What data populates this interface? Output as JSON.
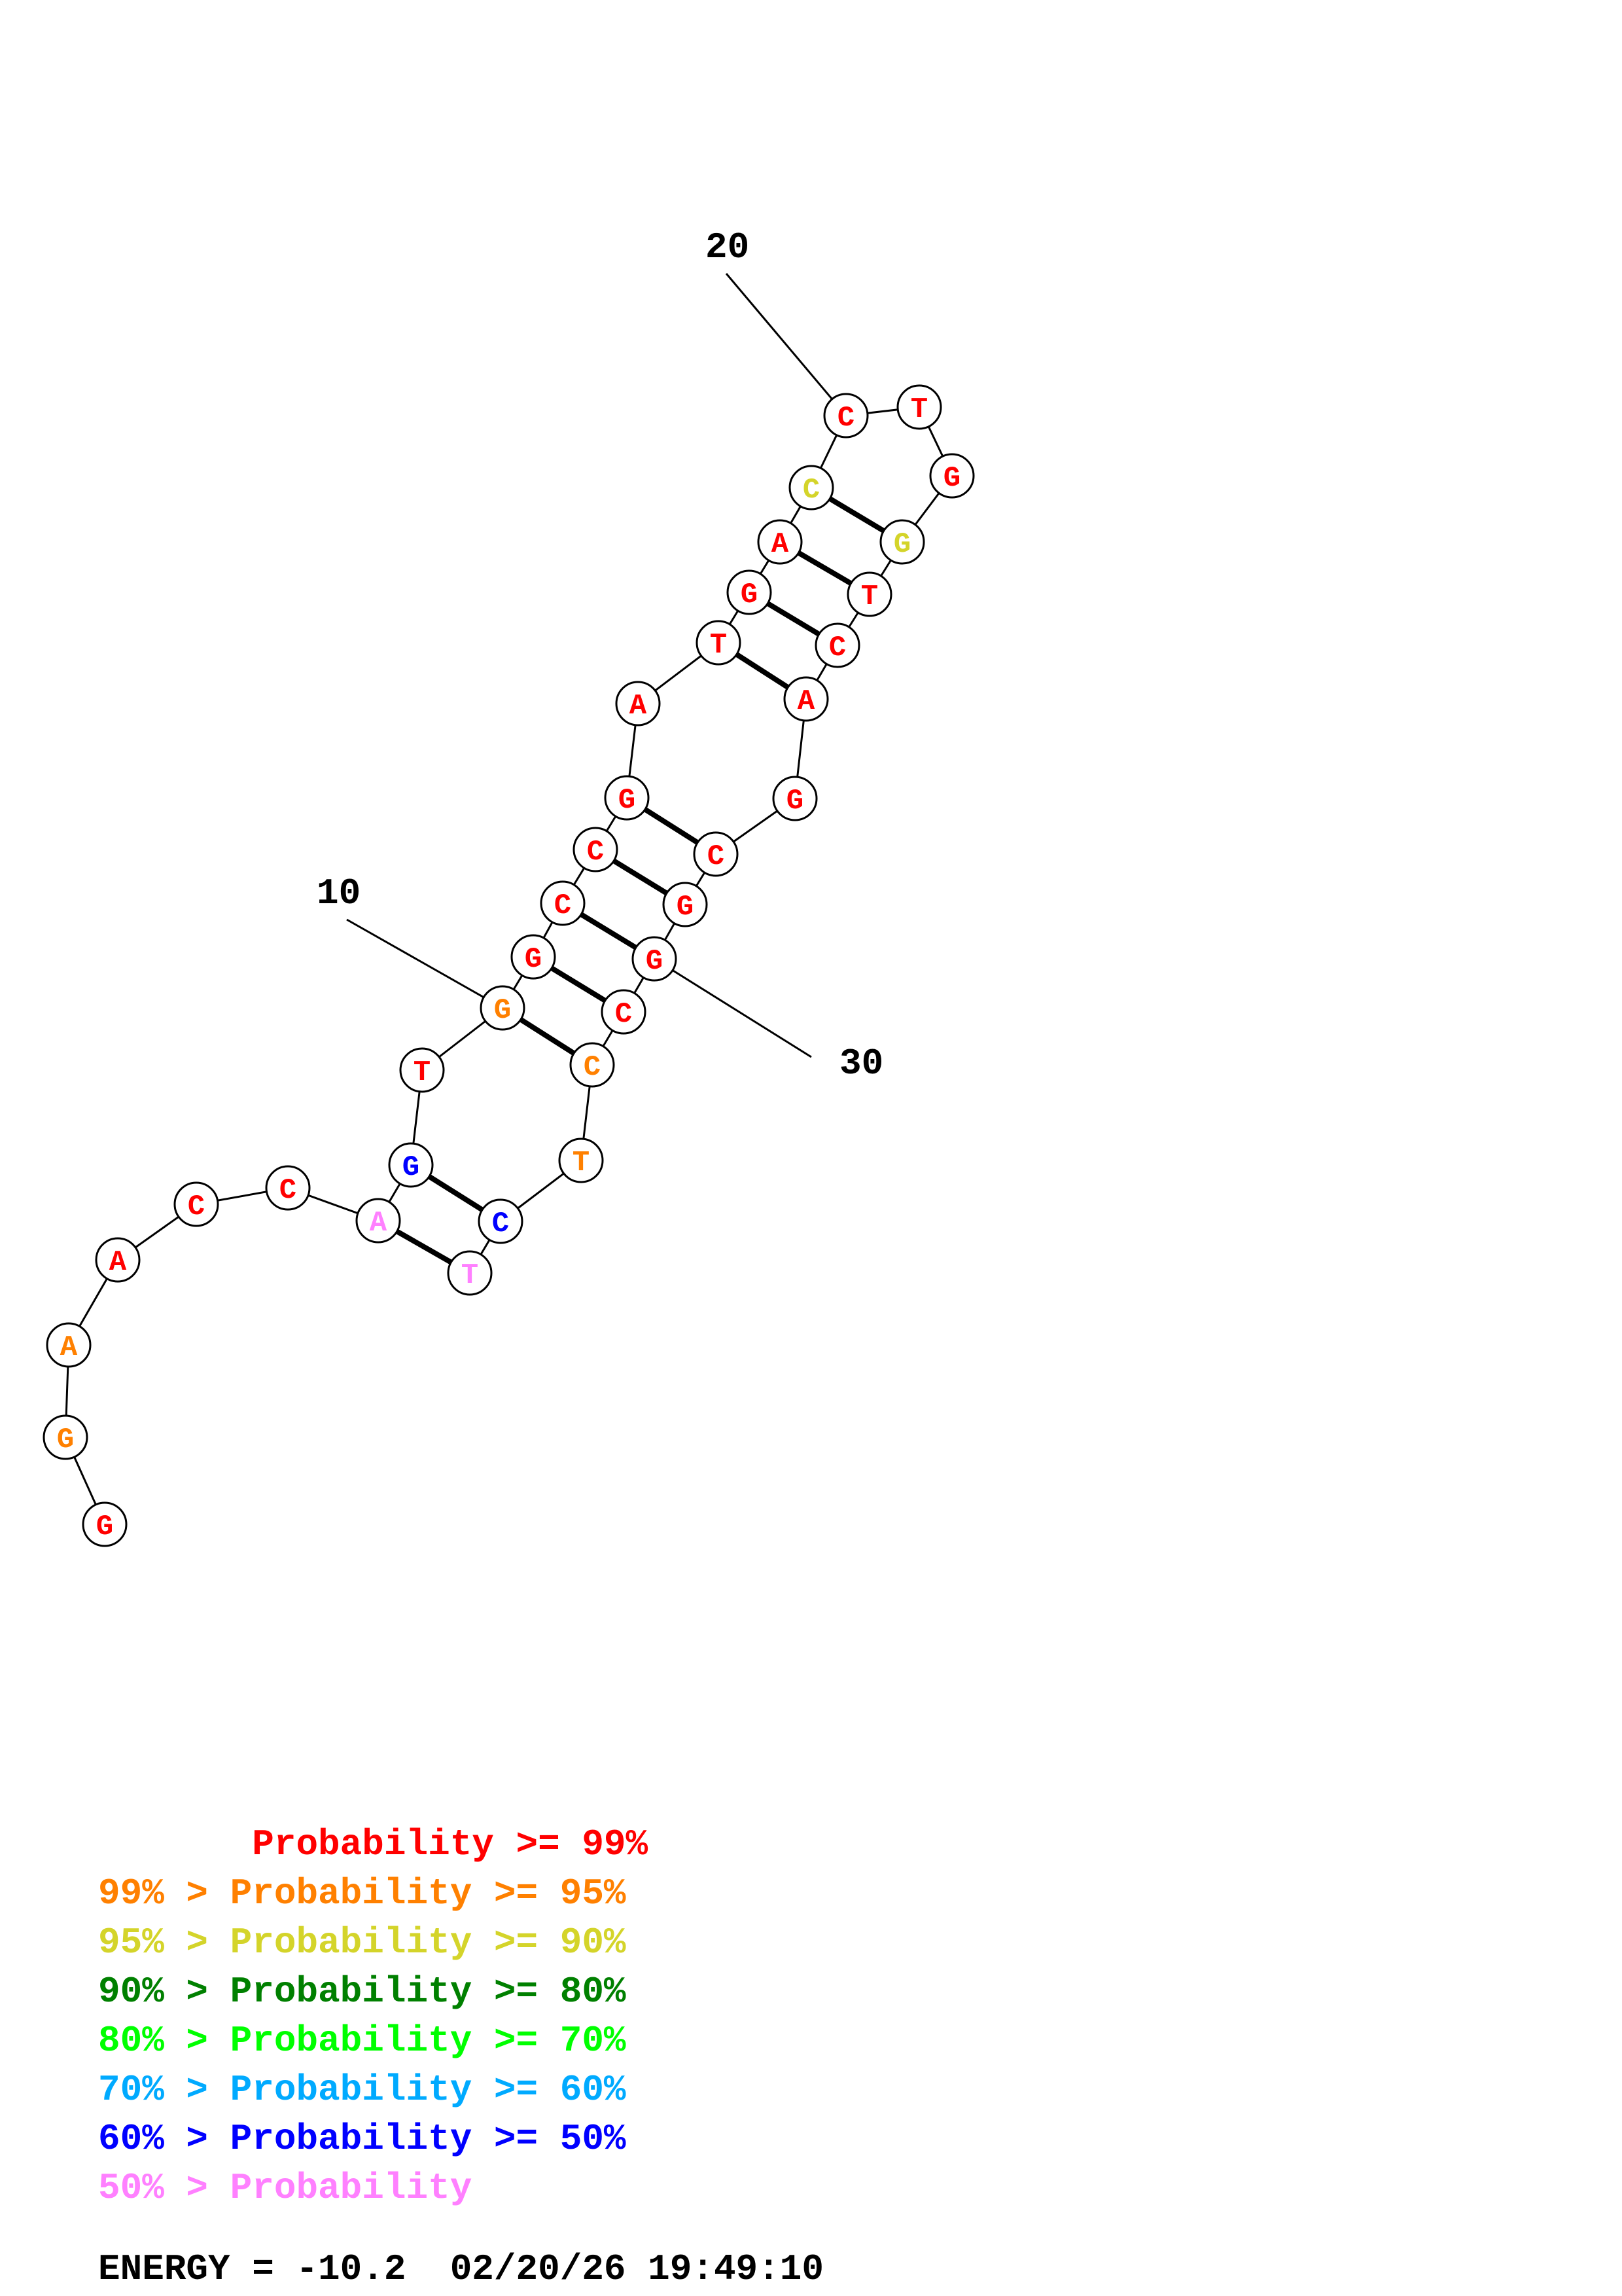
{
  "colors": {
    "p99": "#ff0000",
    "p95": "#ff8000",
    "p90": "#d4d42a",
    "p80": "#008000",
    "p70": "#00ff00",
    "p60": "#00aaff",
    "p50": "#0000ff",
    "plow": "#ff80ff"
  },
  "nucleotides": [
    {
      "n": 1,
      "base": "G",
      "cls": "p99"
    },
    {
      "n": 2,
      "base": "G",
      "cls": "p95"
    },
    {
      "n": 3,
      "base": "A",
      "cls": "p95"
    },
    {
      "n": 4,
      "base": "A",
      "cls": "p99"
    },
    {
      "n": 5,
      "base": "C",
      "cls": "p99"
    },
    {
      "n": 6,
      "base": "C",
      "cls": "p99"
    },
    {
      "n": 7,
      "base": "A",
      "cls": "plow"
    },
    {
      "n": 8,
      "base": "G",
      "cls": "p50"
    },
    {
      "n": 9,
      "base": "T",
      "cls": "p99"
    },
    {
      "n": 10,
      "base": "G",
      "cls": "p95"
    },
    {
      "n": 11,
      "base": "G",
      "cls": "p99"
    },
    {
      "n": 12,
      "base": "C",
      "cls": "p99"
    },
    {
      "n": 13,
      "base": "C",
      "cls": "p99"
    },
    {
      "n": 14,
      "base": "G",
      "cls": "p99"
    },
    {
      "n": 15,
      "base": "A",
      "cls": "p99"
    },
    {
      "n": 16,
      "base": "T",
      "cls": "p99"
    },
    {
      "n": 17,
      "base": "G",
      "cls": "p99"
    },
    {
      "n": 18,
      "base": "A",
      "cls": "p99"
    },
    {
      "n": 19,
      "base": "C",
      "cls": "p90"
    },
    {
      "n": 20,
      "base": "C",
      "cls": "p99"
    },
    {
      "n": 21,
      "base": "T",
      "cls": "p99"
    },
    {
      "n": 22,
      "base": "G",
      "cls": "p99"
    },
    {
      "n": 23,
      "base": "G",
      "cls": "p90"
    },
    {
      "n": 24,
      "base": "T",
      "cls": "p99"
    },
    {
      "n": 25,
      "base": "C",
      "cls": "p99"
    },
    {
      "n": 26,
      "base": "A",
      "cls": "p99"
    },
    {
      "n": 27,
      "base": "G",
      "cls": "p99"
    },
    {
      "n": 28,
      "base": "C",
      "cls": "p99"
    },
    {
      "n": 29,
      "base": "G",
      "cls": "p99"
    },
    {
      "n": 30,
      "base": "G",
      "cls": "p99"
    },
    {
      "n": 31,
      "base": "C",
      "cls": "p99"
    },
    {
      "n": 32,
      "base": "C",
      "cls": "p95"
    },
    {
      "n": 33,
      "base": "T",
      "cls": "p95"
    },
    {
      "n": 34,
      "base": "C",
      "cls": "p50"
    },
    {
      "n": 35,
      "base": "T",
      "cls": "plow"
    }
  ],
  "pairs": [
    [
      7,
      35
    ],
    [
      8,
      34
    ],
    [
      10,
      32
    ],
    [
      11,
      31
    ],
    [
      12,
      30
    ],
    [
      13,
      29
    ],
    [
      14,
      28
    ],
    [
      16,
      26
    ],
    [
      17,
      25
    ],
    [
      18,
      24
    ],
    [
      19,
      23
    ]
  ],
  "position_labels": [
    {
      "text": "10",
      "n": 10
    },
    {
      "text": "20",
      "n": 20
    },
    {
      "text": "30",
      "n": 30
    }
  ],
  "legend": [
    {
      "text": "       Probability >= 99%",
      "cls": "p99"
    },
    {
      "text": "99% > Probability >= 95%",
      "cls": "p95"
    },
    {
      "text": "95% > Probability >= 90%",
      "cls": "p90"
    },
    {
      "text": "90% > Probability >= 80%",
      "cls": "p80"
    },
    {
      "text": "80% > Probability >= 70%",
      "cls": "p70"
    },
    {
      "text": "70% > Probability >= 60%",
      "cls": "p60"
    },
    {
      "text": "60% > Probability >= 50%",
      "cls": "p50"
    },
    {
      "text": "50% > Probability",
      "cls": "plow"
    }
  ],
  "energy": "ENERGY = -10.2  02/20/26 19:49:10"
}
